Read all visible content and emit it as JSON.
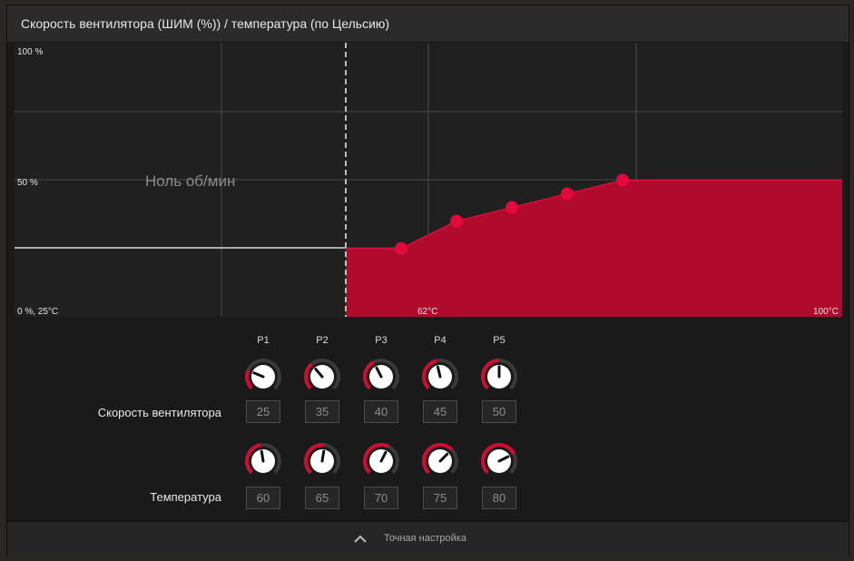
{
  "header": {
    "title": "Скорость вентилятора (ШИМ (%)) / температура (по Цельсию)"
  },
  "chart": {
    "label_y_max": "100 %",
    "label_y_mid": "50 %",
    "label_origin": "0 %, 25°C",
    "label_x_mid": "62°C",
    "label_x_max": "100°C",
    "zero_rpm_label": "Ноль об/мин",
    "fill_color": "#b00a2c",
    "point_color": "#e3093a"
  },
  "chart_data": {
    "type": "area",
    "x": [
      62,
      70,
      78,
      86,
      94,
      100
    ],
    "points": [
      {
        "name": "P1",
        "speed": 25,
        "temp": 60
      },
      {
        "name": "P2",
        "speed": 35,
        "temp": 65
      },
      {
        "name": "P3",
        "speed": 40,
        "temp": 70
      },
      {
        "name": "P4",
        "speed": 45,
        "temp": 75
      },
      {
        "name": "P5",
        "speed": 50,
        "temp": 80
      }
    ],
    "xlabel": "",
    "ylabel": "",
    "ylim": [
      0,
      100
    ],
    "grid": true
  },
  "columns": [
    "P1",
    "P2",
    "P3",
    "P4",
    "P5"
  ],
  "rows": {
    "fan_speed_label": "Скорость вентилятора",
    "temperature_label": "Температура"
  },
  "fan_speed_values": [
    "25",
    "35",
    "40",
    "45",
    "50"
  ],
  "temperature_values": [
    "60",
    "65",
    "70",
    "75",
    "80"
  ],
  "footer": {
    "label": "Точная настройка"
  },
  "colors": {
    "accent": "#d40a32",
    "knob_track": "#3a3a3a"
  }
}
